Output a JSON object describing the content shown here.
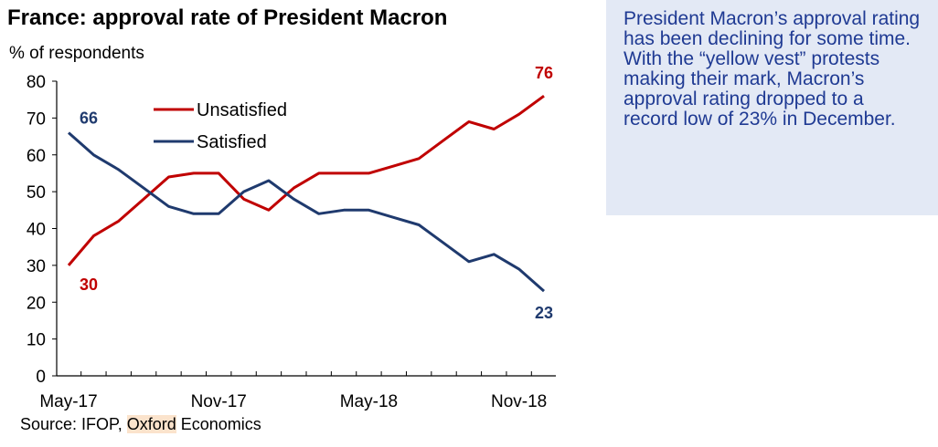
{
  "title": "France: approval rate of President Macron",
  "unit_label": "% of respondents",
  "source": {
    "prefix": "Source: IFOP, ",
    "highlight": "Oxford",
    "suffix": " Economics"
  },
  "note": "President Macron’s approval rating has been declining for some time. With the “yellow vest” protests making their mark, Macron’s approval rating dropped to a record low of 23% in December.",
  "colors": {
    "unsatisfied": "#c00000",
    "satisfied": "#1f3a6e",
    "note_bg": "#e3e9f5",
    "note_text": "#1f3a93"
  },
  "chart_data": {
    "type": "line",
    "title": "France: approval rate of President Macron",
    "ylabel": "% of respondents",
    "ylim": [
      0,
      80
    ],
    "yticks": [
      0,
      10,
      20,
      30,
      40,
      50,
      60,
      70,
      80
    ],
    "x": [
      "May-17",
      "Jun-17",
      "Jul-17",
      "Aug-17",
      "Sep-17",
      "Oct-17",
      "Nov-17",
      "Dec-17",
      "Jan-18",
      "Feb-18",
      "Mar-18",
      "Apr-18",
      "May-18",
      "Jun-18",
      "Jul-18",
      "Aug-18",
      "Sep-18",
      "Oct-18",
      "Nov-18",
      "Dec-18"
    ],
    "xtick_labels": [
      {
        "label": "May-17",
        "index": 0
      },
      {
        "label": "Nov-17",
        "index": 6
      },
      {
        "label": "May-18",
        "index": 12
      },
      {
        "label": "Nov-18",
        "index": 18
      }
    ],
    "series": [
      {
        "name": "Unsatisfied",
        "color": "#c00000",
        "values": [
          30,
          38,
          42,
          48,
          54,
          55,
          55,
          48,
          45,
          51,
          55,
          55,
          55,
          57,
          59,
          64,
          69,
          67,
          71,
          76
        ]
      },
      {
        "name": "Satisfied",
        "color": "#1f3a6e",
        "values": [
          66,
          60,
          56,
          51,
          46,
          44,
          44,
          50,
          53,
          48,
          44,
          45,
          45,
          43,
          41,
          36,
          31,
          33,
          29,
          23
        ]
      }
    ],
    "annotations": [
      {
        "text": "66",
        "series": "Satisfied",
        "index": 0
      },
      {
        "text": "30",
        "series": "Unsatisfied",
        "index": 0
      },
      {
        "text": "76",
        "series": "Unsatisfied",
        "index": 19
      },
      {
        "text": "23",
        "series": "Satisfied",
        "index": 19
      }
    ],
    "legend": "top-left inside plot",
    "grid": false
  }
}
